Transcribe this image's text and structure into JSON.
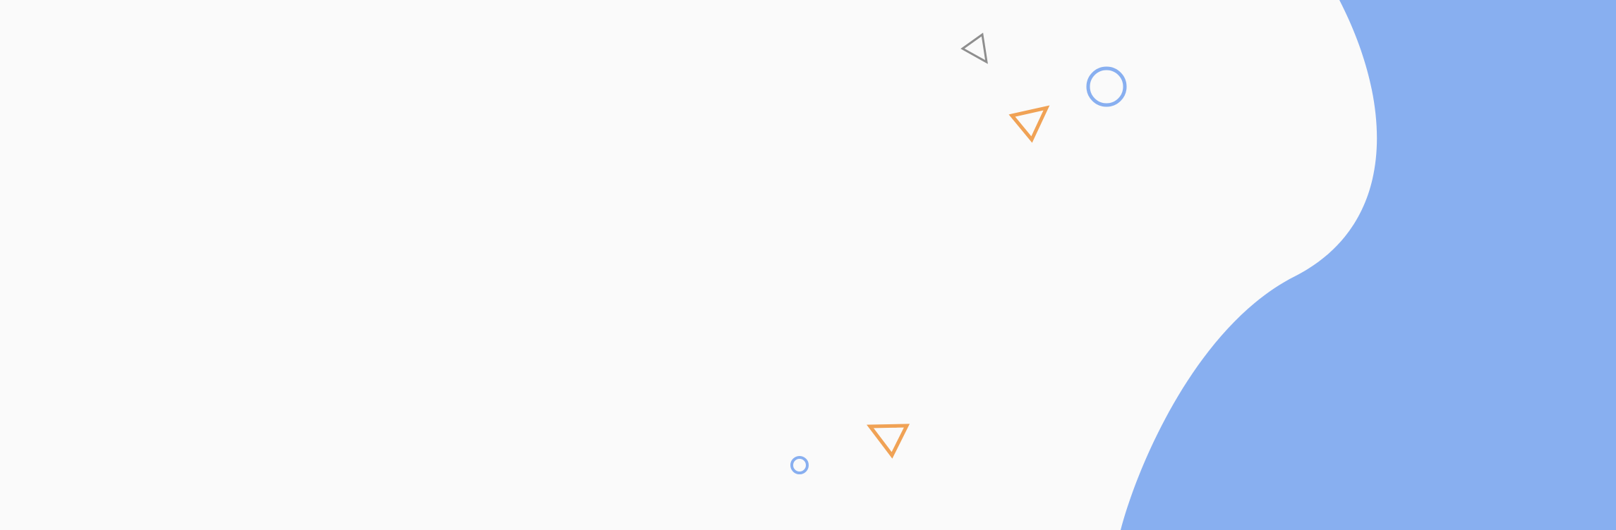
{
  "colors": {
    "background": "#fafafa",
    "blob": "#88aff0",
    "accent_orange": "#f0a255",
    "accent_gray": "#8e8e8e",
    "accent_blue": "#88aff0"
  },
  "shapes": [
    {
      "name": "gray-triangle-outline",
      "icon": "triangle-outline-icon"
    },
    {
      "name": "blue-ring-large",
      "icon": "ring-icon"
    },
    {
      "name": "orange-triangle-top",
      "icon": "triangle-outline-icon"
    },
    {
      "name": "orange-triangle-bottom",
      "icon": "triangle-outline-icon"
    },
    {
      "name": "blue-ring-small",
      "icon": "ring-icon"
    }
  ]
}
